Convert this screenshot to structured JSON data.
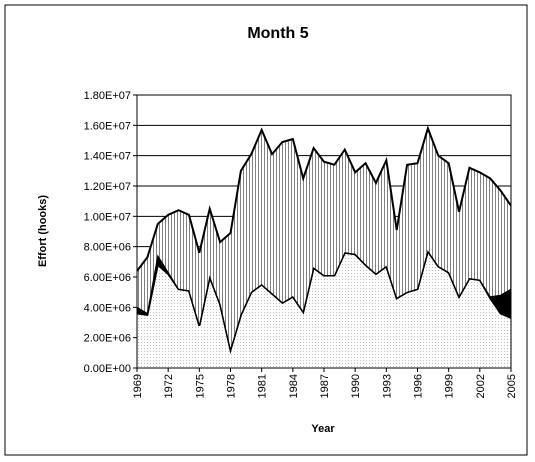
{
  "chart_data": {
    "type": "stacked-area",
    "title": "Month 5",
    "y_label": "Effort (hooks)",
    "x_label": "Year",
    "x": [
      1969,
      1970,
      1971,
      1972,
      1973,
      1974,
      1975,
      1976,
      1977,
      1978,
      1979,
      1980,
      1981,
      1982,
      1983,
      1984,
      1985,
      1986,
      1987,
      1988,
      1989,
      1990,
      1991,
      1992,
      1993,
      1994,
      1995,
      1996,
      1997,
      1998,
      1999,
      2000,
      2001,
      2002,
      2003,
      2004,
      2005
    ],
    "xlim": [
      1969,
      2005
    ],
    "xticks": [
      1969,
      1972,
      1975,
      1978,
      1981,
      1984,
      1987,
      1990,
      1993,
      1996,
      1999,
      2002,
      2005
    ],
    "ylim": [
      0,
      18000000
    ],
    "yticks": [
      {
        "value": 0,
        "label": "0.00E+00"
      },
      {
        "value": 2000000,
        "label": "2.00E+06"
      },
      {
        "value": 4000000,
        "label": "4.00E+06"
      },
      {
        "value": 6000000,
        "label": "6.00E+06"
      },
      {
        "value": 8000000,
        "label": "8.00E+06"
      },
      {
        "value": 10000000,
        "label": "1.00E+07"
      },
      {
        "value": 12000000,
        "label": "1.20E+07"
      },
      {
        "value": 14000000,
        "label": "1.40E+07"
      },
      {
        "value": 16000000,
        "label": "1.60E+07"
      },
      {
        "value": 18000000,
        "label": "1.80E+07"
      }
    ],
    "grid": true,
    "series": [
      {
        "color": "#bfbfbf",
        "pattern": "dots",
        "values": [
          3600000,
          3500000,
          6800000,
          6200000,
          5200000,
          5100000,
          2800000,
          6000000,
          4200000,
          1200000,
          3500000,
          5000000,
          5500000,
          4900000,
          4300000,
          4700000,
          3700000,
          6600000,
          6100000,
          6100000,
          7600000,
          7500000,
          6800000,
          6200000,
          6700000,
          4600000,
          5000000,
          5200000,
          7700000,
          6700000,
          6300000,
          4700000,
          5900000,
          5800000,
          4600000,
          3600000,
          3300000
        ]
      },
      {
        "color": "#000000",
        "pattern": "solid",
        "values": [
          400000,
          100000,
          600000,
          100000,
          0,
          0,
          0,
          0,
          0,
          0,
          0,
          0,
          0,
          0,
          0,
          0,
          0,
          0,
          0,
          0,
          0,
          0,
          0,
          0,
          0,
          0,
          0,
          0,
          0,
          0,
          0,
          0,
          0,
          0,
          100000,
          1200000,
          1900000
        ]
      },
      {
        "color": "#808080",
        "pattern": "vertical",
        "values": [
          2400000,
          3700000,
          2100000,
          3800000,
          5200000,
          5000000,
          4800000,
          4500000,
          4100000,
          7700000,
          9500000,
          9100000,
          10200000,
          9200000,
          10600000,
          10400000,
          8800000,
          7900000,
          7500000,
          7300000,
          6800000,
          5400000,
          6700000,
          6000000,
          7000000,
          4500000,
          8400000,
          8300000,
          8100000,
          7300000,
          7200000,
          5600000,
          7300000,
          7100000,
          7800000,
          6900000,
          5500000
        ]
      }
    ]
  }
}
